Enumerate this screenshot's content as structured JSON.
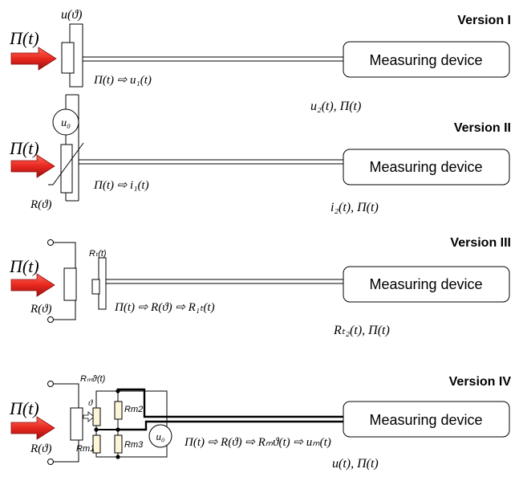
{
  "versions": [
    {
      "title": "Version I",
      "device": "Measuring device",
      "line_label": "Π(t) ⇨ u₁(t)",
      "output": "u₂(t), Π(t)",
      "sensor_label": "u(ϑ)",
      "input": "Π(t)"
    },
    {
      "title": "Version II",
      "device": "Measuring device",
      "line_label": "Π(t) ⇨ i₁(t)",
      "output": "i₂(t), Π(t)",
      "sensor_label": "R(ϑ)",
      "source": "u₀",
      "input": "Π(t)"
    },
    {
      "title": "Version III",
      "device": "Measuring device",
      "line_label": "Π(t) ⇨ R(ϑ) ⇨ R₁ₜ(t)",
      "output": "Rₜ₂(t), Π(t)",
      "sensor_label": "R(ϑ)",
      "lead_label": "Rₜ(t)",
      "input": "Π(t)"
    },
    {
      "title": "Version IV",
      "device": "Measuring device",
      "line_label": "Π(t) ⇨ R(ϑ) ⇨ Rₘϑ(t) ⇨ uₘ(t)",
      "output": "u(t), Π(t)",
      "sensor_label": "R(ϑ)",
      "lead_label": "Rₘϑ(t)",
      "theta": "ϑ",
      "rm1": "Rm1",
      "rm2": "Rm2",
      "rm3": "Rm3",
      "source": "u₀",
      "input": "Π(t)"
    }
  ],
  "colors": {
    "arrow": "#e8281f",
    "arrow_dark": "#a01010",
    "resistor_fill": "#fdf5d8"
  }
}
